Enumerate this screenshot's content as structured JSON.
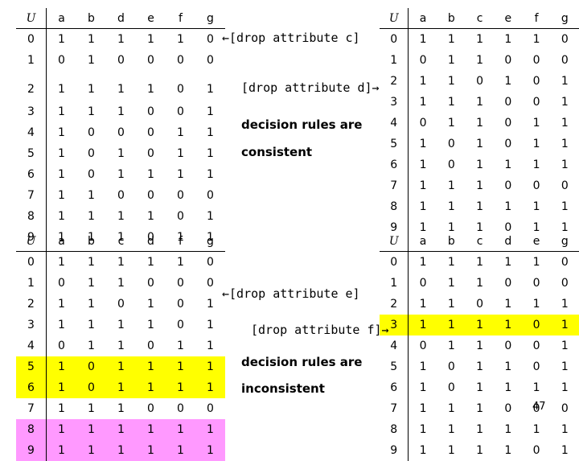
{
  "tables": {
    "t1": {
      "headers": [
        "U",
        "a",
        "b",
        "d",
        "e",
        "f",
        "g"
      ],
      "rows": [
        [
          "0",
          "1",
          "1",
          "1",
          "1",
          "1",
          "0"
        ],
        [
          "1",
          "0",
          "1",
          "0",
          "0",
          "0",
          "0"
        ],
        [
          "2",
          "1",
          "1",
          "1",
          "1",
          "0",
          "1"
        ],
        [
          "3",
          "1",
          "1",
          "1",
          "0",
          "0",
          "1"
        ],
        [
          "4",
          "1",
          "0",
          "0",
          "0",
          "1",
          "1"
        ],
        [
          "5",
          "1",
          "0",
          "1",
          "0",
          "1",
          "1"
        ],
        [
          "6",
          "1",
          "0",
          "1",
          "1",
          "1",
          "1"
        ],
        [
          "7",
          "1",
          "1",
          "0",
          "0",
          "0",
          "0"
        ],
        [
          "8",
          "1",
          "1",
          "1",
          "1",
          "0",
          "1"
        ],
        [
          "9",
          "1",
          "1",
          "1",
          "0",
          "1",
          "1"
        ]
      ]
    },
    "t2": {
      "headers": [
        "U",
        "a",
        "b",
        "c",
        "e",
        "f",
        "g"
      ],
      "rows": [
        [
          "0",
          "1",
          "1",
          "1",
          "1",
          "1",
          "0"
        ],
        [
          "1",
          "0",
          "1",
          "1",
          "0",
          "0",
          "0"
        ],
        [
          "2",
          "1",
          "1",
          "0",
          "1",
          "0",
          "1"
        ],
        [
          "3",
          "1",
          "1",
          "1",
          "0",
          "0",
          "1"
        ],
        [
          "4",
          "0",
          "1",
          "1",
          "0",
          "1",
          "1"
        ],
        [
          "5",
          "1",
          "0",
          "1",
          "0",
          "1",
          "1"
        ],
        [
          "6",
          "1",
          "0",
          "1",
          "1",
          "1",
          "1"
        ],
        [
          "7",
          "1",
          "1",
          "1",
          "0",
          "0",
          "0"
        ],
        [
          "8",
          "1",
          "1",
          "1",
          "1",
          "1",
          "1"
        ],
        [
          "9",
          "1",
          "1",
          "1",
          "0",
          "1",
          "1"
        ]
      ]
    },
    "t3": {
      "headers": [
        "U",
        "a",
        "b",
        "c",
        "d",
        "f",
        "g"
      ],
      "rows": [
        [
          "0",
          "1",
          "1",
          "1",
          "1",
          "1",
          "0"
        ],
        [
          "1",
          "0",
          "1",
          "1",
          "0",
          "0",
          "0"
        ],
        [
          "2",
          "1",
          "1",
          "0",
          "1",
          "0",
          "1"
        ],
        [
          "3",
          "1",
          "1",
          "1",
          "1",
          "0",
          "1"
        ],
        [
          "4",
          "0",
          "1",
          "1",
          "0",
          "1",
          "1"
        ],
        [
          "5",
          "1",
          "0",
          "1",
          "1",
          "1",
          "1"
        ],
        [
          "6",
          "1",
          "0",
          "1",
          "1",
          "1",
          "1"
        ],
        [
          "7",
          "1",
          "1",
          "1",
          "0",
          "0",
          "0"
        ],
        [
          "8",
          "1",
          "1",
          "1",
          "1",
          "1",
          "1"
        ],
        [
          "9",
          "1",
          "1",
          "1",
          "1",
          "1",
          "1"
        ]
      ]
    },
    "t4": {
      "headers": [
        "U",
        "a",
        "b",
        "c",
        "d",
        "e",
        "g"
      ],
      "rows": [
        [
          "0",
          "1",
          "1",
          "1",
          "1",
          "1",
          "0"
        ],
        [
          "1",
          "0",
          "1",
          "1",
          "0",
          "0",
          "0"
        ],
        [
          "2",
          "1",
          "1",
          "0",
          "1",
          "1",
          "1"
        ],
        [
          "3",
          "1",
          "1",
          "1",
          "1",
          "0",
          "1"
        ],
        [
          "4",
          "0",
          "1",
          "1",
          "0",
          "0",
          "1"
        ],
        [
          "5",
          "1",
          "0",
          "1",
          "1",
          "0",
          "1"
        ],
        [
          "6",
          "1",
          "0",
          "1",
          "1",
          "1",
          "1"
        ],
        [
          "7",
          "1",
          "1",
          "1",
          "0",
          "0",
          "0"
        ],
        [
          "8",
          "1",
          "1",
          "1",
          "1",
          "1",
          "1"
        ],
        [
          "9",
          "1",
          "1",
          "1",
          "1",
          "0",
          "1"
        ]
      ]
    }
  },
  "highlights": {
    "t3_yellow_rows": [
      5,
      6
    ],
    "t3_pink_rows": [
      8,
      9
    ],
    "t4_yellow_rows": [
      3
    ],
    "yellow": "#ffff00",
    "pink": "#ff99ff"
  },
  "notes": {
    "drop_c": "←[drop attribute c]",
    "drop_d": "[drop attribute d]→",
    "consistent_1": "decision rules are",
    "consistent_2": "consistent",
    "drop_e": "←[drop attribute e]",
    "drop_f": "[drop attribute f]→",
    "inconsistent_1": "decision rules are",
    "inconsistent_2": "inconsistent"
  },
  "page_number": "47"
}
